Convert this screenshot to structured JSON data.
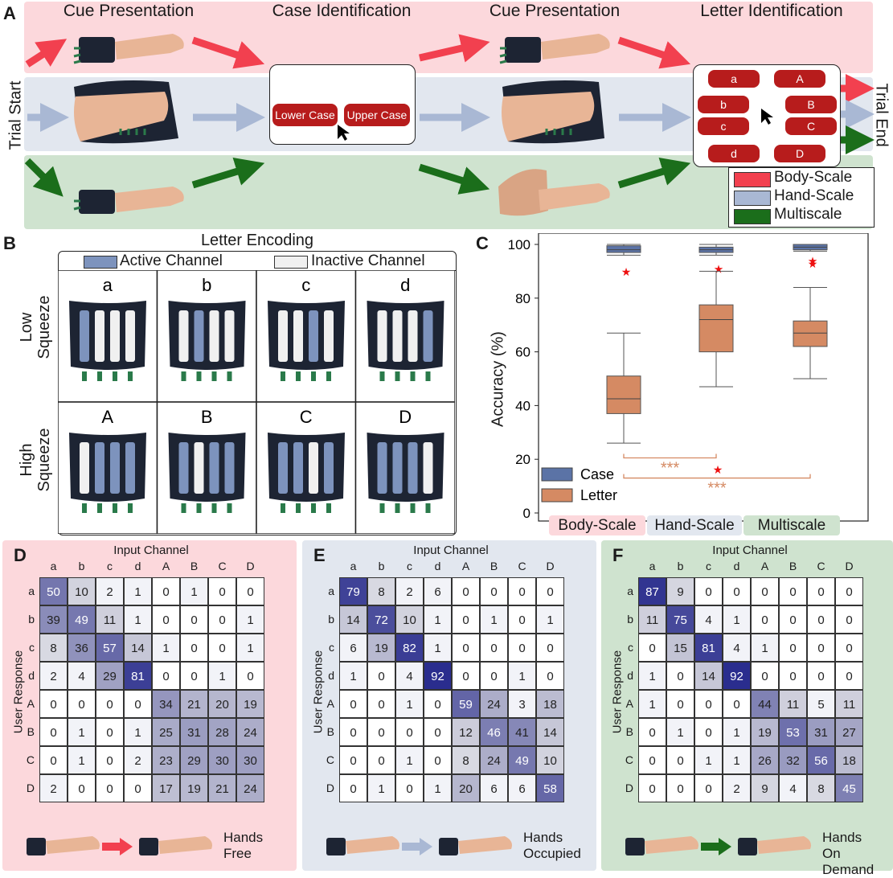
{
  "panel_letters": {
    "a": "A",
    "b": "B",
    "c": "C",
    "d": "D",
    "e": "E",
    "f": "F"
  },
  "panelA": {
    "titles": [
      "Cue Presentation",
      "Case Identification",
      "Cue Presentation",
      "Letter Identification"
    ],
    "trial_start": "Trial Start",
    "trial_end": "Trial End",
    "case_buttons": [
      "Lower Case",
      "Upper Case"
    ],
    "letter_buttons": [
      "a",
      "A",
      "b",
      "B",
      "c",
      "C",
      "d",
      "D"
    ],
    "legend": [
      {
        "label": "Body-Scale",
        "color": "#f2404f"
      },
      {
        "label": "Hand-Scale",
        "color": "#a9b8d4"
      },
      {
        "label": "Multiscale",
        "color": "#1b6e1b"
      }
    ],
    "band_colors": {
      "body": "#fcd8dc",
      "hand": "#e2e7ef",
      "multi": "#cfe3cf"
    }
  },
  "panelB": {
    "title": "Letter Encoding",
    "legend_active": "Active Channel",
    "legend_inactive": "Inactive Channel",
    "row_labels": [
      "Low Squeeze",
      "High Squeeze"
    ],
    "letters": [
      "a",
      "b",
      "c",
      "d",
      "A",
      "B",
      "C",
      "D"
    ],
    "active_color": "#7d93bd",
    "inactive_color": "#f0f0f0",
    "patterns": [
      [
        1,
        0,
        0,
        0
      ],
      [
        0,
        1,
        0,
        0
      ],
      [
        0,
        0,
        1,
        0
      ],
      [
        0,
        0,
        0,
        1
      ],
      [
        0,
        1,
        1,
        1
      ],
      [
        1,
        0,
        1,
        1
      ],
      [
        1,
        1,
        0,
        1
      ],
      [
        1,
        1,
        1,
        0
      ]
    ]
  },
  "panelC": {
    "chart_data": {
      "type": "box",
      "ylabel": "Accuracy (%)",
      "ylim": [
        0,
        100
      ],
      "yticks": [
        0,
        20,
        40,
        60,
        80,
        100
      ],
      "categories": [
        "Body-Scale",
        "Hand-Scale",
        "Multiscale"
      ],
      "category_colors": [
        "#fcd8dc",
        "#e2e7ef",
        "#cfe3cf"
      ],
      "legend": [
        {
          "label": "Case",
          "color": "#5b73a6"
        },
        {
          "label": "Letter",
          "color": "#d58a63"
        }
      ],
      "series": [
        {
          "name": "Case",
          "color": "#5b73a6",
          "boxes": [
            {
              "min": 96,
              "q1": 97,
              "median": 98,
              "q3": 99.5,
              "max": 100,
              "outliers": [
                91
              ]
            },
            {
              "min": 96,
              "q1": 97,
              "median": 98,
              "q3": 99,
              "max": 100,
              "outliers": [
                92
              ]
            },
            {
              "min": 97.5,
              "q1": 98,
              "median": 99,
              "q3": 100,
              "max": 100,
              "outliers": [
                95,
                94
              ]
            }
          ]
        },
        {
          "name": "Letter",
          "color": "#d58a63",
          "boxes": [
            {
              "min": 26,
              "q1": 37,
              "median": 42.5,
              "q3": 51,
              "max": 67,
              "outliers": []
            },
            {
              "min": 47,
              "q1": 60,
              "median": 72,
              "q3": 77.5,
              "max": 90,
              "outliers": []
            },
            {
              "min": 50,
              "q1": 62,
              "median": 67,
              "q3": 71.5,
              "max": 84,
              "outliers": []
            }
          ]
        }
      ],
      "significance": [
        {
          "from": 0,
          "to": 1,
          "label": "***"
        },
        {
          "from": 0,
          "to": 2,
          "label": "***"
        }
      ],
      "extra_outlier": {
        "x": 1,
        "y": 17
      }
    }
  },
  "matrices": {
    "input_label": "Input Channel",
    "response_label": "User Response",
    "col_labels": [
      "a",
      "b",
      "c",
      "d",
      "A",
      "B",
      "C",
      "D"
    ],
    "row_labels": [
      "a",
      "b",
      "c",
      "d",
      "A",
      "B",
      "C",
      "D"
    ],
    "panels": [
      {
        "letter": "D",
        "bg": "#fcd8dc",
        "footer": [
          "Hands",
          "Free"
        ],
        "arrow_color": "#f2404f",
        "values": [
          [
            50,
            10,
            2,
            1,
            0,
            1,
            0,
            0
          ],
          [
            39,
            49,
            11,
            1,
            0,
            0,
            0,
            1
          ],
          [
            8,
            36,
            57,
            14,
            1,
            0,
            0,
            1
          ],
          [
            2,
            4,
            29,
            81,
            0,
            0,
            1,
            0
          ],
          [
            0,
            0,
            0,
            0,
            34,
            21,
            20,
            19
          ],
          [
            0,
            1,
            0,
            1,
            25,
            31,
            28,
            24
          ],
          [
            0,
            1,
            0,
            2,
            23,
            29,
            30,
            30
          ],
          [
            2,
            0,
            0,
            0,
            17,
            19,
            21,
            24
          ]
        ]
      },
      {
        "letter": "E",
        "bg": "#e2e7ef",
        "footer": [
          "Hands",
          "Occupied"
        ],
        "arrow_color": "#a9b8d4",
        "values": [
          [
            79,
            8,
            2,
            6,
            0,
            0,
            0,
            0
          ],
          [
            14,
            72,
            10,
            1,
            0,
            1,
            0,
            1
          ],
          [
            6,
            19,
            82,
            1,
            0,
            0,
            0,
            0
          ],
          [
            1,
            0,
            4,
            92,
            0,
            0,
            1,
            0
          ],
          [
            0,
            0,
            1,
            0,
            59,
            24,
            3,
            18
          ],
          [
            0,
            0,
            0,
            0,
            12,
            46,
            41,
            14
          ],
          [
            0,
            0,
            1,
            0,
            8,
            24,
            49,
            10
          ],
          [
            0,
            1,
            0,
            1,
            20,
            6,
            6,
            58
          ]
        ]
      },
      {
        "letter": "F",
        "bg": "#cfe3cf",
        "footer": [
          "Hands",
          "On Demand"
        ],
        "arrow_color": "#1b6e1b",
        "values": [
          [
            87,
            9,
            0,
            0,
            0,
            0,
            0,
            0
          ],
          [
            11,
            75,
            4,
            1,
            0,
            0,
            0,
            0
          ],
          [
            0,
            15,
            81,
            4,
            1,
            0,
            0,
            0
          ],
          [
            1,
            0,
            14,
            92,
            0,
            0,
            0,
            0
          ],
          [
            1,
            0,
            0,
            0,
            44,
            11,
            5,
            11
          ],
          [
            0,
            1,
            0,
            1,
            19,
            53,
            31,
            27
          ],
          [
            0,
            0,
            1,
            1,
            26,
            32,
            56,
            18
          ],
          [
            0,
            0,
            0,
            2,
            9,
            4,
            8,
            45
          ]
        ]
      }
    ]
  }
}
